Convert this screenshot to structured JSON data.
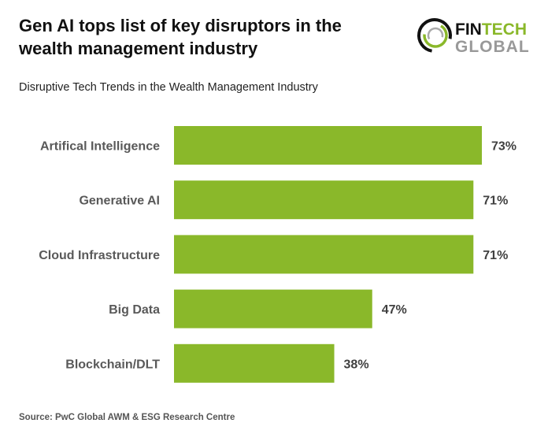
{
  "header": {
    "title": "Gen AI tops list of key disruptors in the wealth management industry"
  },
  "logo": {
    "line1": "FINTECH",
    "line2": "GLOBAL"
  },
  "footer": {
    "source": "Source: PwC Global AWM & ESG Research Centre"
  },
  "chart_data": {
    "type": "bar",
    "orientation": "horizontal",
    "title": "Disruptive Tech Trends in the Wealth Management Industry",
    "categories": [
      "Artifical Intelligence",
      "Generative AI",
      "Cloud Infrastructure",
      "Big Data",
      "Blockchain/DLT"
    ],
    "values": [
      73,
      71,
      71,
      47,
      38
    ],
    "data_labels": [
      "73%",
      "71%",
      "71%",
      "47%",
      "38%"
    ],
    "unit": "%",
    "xlim": [
      0,
      73
    ],
    "grid": false,
    "bar_color": "#8ab82a"
  }
}
